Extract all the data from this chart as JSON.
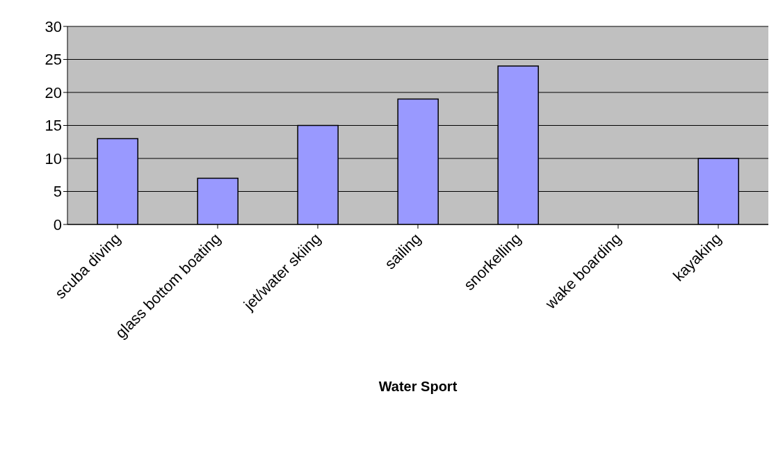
{
  "chart_data": {
    "type": "bar",
    "xlabel": "Water Sport",
    "categories": [
      "scuba diving",
      "glass bottom boating",
      "jet/water skiing",
      "sailing",
      "snorkelling",
      "wake boarding",
      "kayaking"
    ],
    "values": [
      13,
      7,
      15,
      19,
      24,
      0,
      10
    ],
    "color": "#9999ff",
    "ylim": [
      0,
      30
    ],
    "yticks": [
      0,
      5,
      10,
      15,
      20,
      25,
      30
    ],
    "grid": "y",
    "legend": false
  }
}
